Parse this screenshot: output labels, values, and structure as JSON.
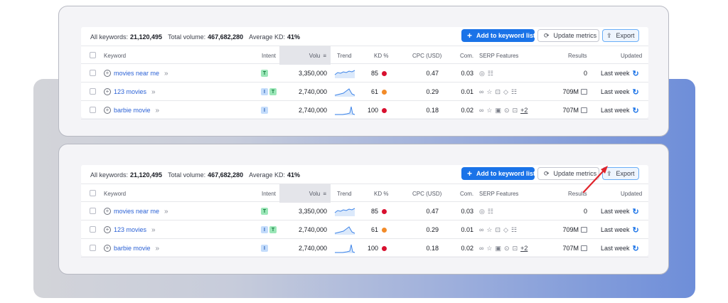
{
  "summary": {
    "keywords_label": "All keywords:",
    "keywords_value": "21,120,495",
    "volume_label": "Total volume:",
    "volume_value": "467,682,280",
    "kd_label": "Average KD:",
    "kd_value": "41%"
  },
  "buttons": {
    "add": "Add to keyword list",
    "update": "Update metrics",
    "export": "Export"
  },
  "headers": {
    "keyword": "Keyword",
    "intent": "Intent",
    "volume": "Volu",
    "trend": "Trend",
    "kd": "KD %",
    "cpc": "CPC (USD)",
    "com": "Com.",
    "serp": "SERP Features",
    "results": "Results",
    "updated": "Updated"
  },
  "rows": [
    {
      "keyword": "movies near me",
      "intent": [
        "T"
      ],
      "volume": "3,350,000",
      "kd": "85",
      "kd_color": "#d8102f",
      "cpc": "0.47",
      "com": "0.03",
      "serp_icons": [
        "map-pin-icon",
        "list-icon"
      ],
      "serp_more": "",
      "results": "0",
      "updated": "Last week"
    },
    {
      "keyword": "123 movies",
      "intent": [
        "I",
        "T"
      ],
      "volume": "2,740,000",
      "kd": "61",
      "kd_color": "#f28b29",
      "cpc": "0.29",
      "com": "0.01",
      "serp_icons": [
        "link-icon",
        "star-icon",
        "comment-icon",
        "graduation-cap-icon",
        "list-icon"
      ],
      "serp_more": "",
      "results": "709M",
      "updated": "Last week"
    },
    {
      "keyword": "barbie movie",
      "intent": [
        "I"
      ],
      "volume": "2,740,000",
      "kd": "100",
      "kd_color": "#d8102f",
      "cpc": "0.18",
      "com": "0.02",
      "serp_icons": [
        "link-icon",
        "star-icon",
        "image-icon",
        "play-icon",
        "comment-icon"
      ],
      "serp_more": "+2",
      "results": "707M",
      "updated": "Last week"
    }
  ],
  "colors": {
    "accent": "#1a73e8",
    "arrow": "#e0242c"
  }
}
